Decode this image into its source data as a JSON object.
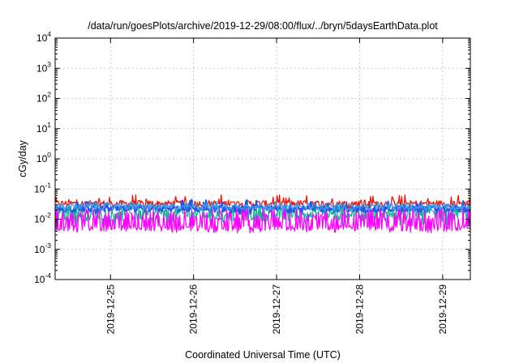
{
  "chart_data": {
    "type": "line",
    "title": "/data/run/goesPlots/archive/2019-12-29/08:00/flux/../bryn/5daysEarthData.plot",
    "xlabel": "Coordinated Universal Time (UTC)",
    "ylabel": "cGy/day",
    "yscale": "log",
    "ylim": [
      0.0001,
      10000
    ],
    "y_ticks": [
      {
        "base": "10",
        "exp": "-4",
        "value": 0.0001
      },
      {
        "base": "10",
        "exp": "-3",
        "value": 0.001
      },
      {
        "base": "10",
        "exp": "-2",
        "value": 0.01
      },
      {
        "base": "10",
        "exp": "-1",
        "value": 0.1
      },
      {
        "base": "10",
        "exp": "0",
        "value": 1
      },
      {
        "base": "10",
        "exp": "1",
        "value": 10
      },
      {
        "base": "10",
        "exp": "2",
        "value": 100
      },
      {
        "base": "10",
        "exp": "3",
        "value": 1000
      },
      {
        "base": "10",
        "exp": "4",
        "value": 10000
      }
    ],
    "xlim": [
      "2019-12-24T08:00",
      "2019-12-29T08:00"
    ],
    "x_ticks": [
      {
        "label": "2019-12-25",
        "value": "2019-12-25T00:00"
      },
      {
        "label": "2019-12-26",
        "value": "2019-12-26T00:00"
      },
      {
        "label": "2019-12-27",
        "value": "2019-12-27T00:00"
      },
      {
        "label": "2019-12-28",
        "value": "2019-12-28T00:00"
      },
      {
        "label": "2019-12-29",
        "value": "2019-12-29T00:00"
      }
    ],
    "grid": true,
    "legend": "none",
    "series": [
      {
        "color": "#e8190c",
        "typical": 0.033,
        "low": 0.022,
        "high": 0.065
      },
      {
        "color": "#14b894",
        "typical": 0.015,
        "low": 0.006,
        "high": 0.03
      },
      {
        "color": "#2255e8",
        "typical": 0.022,
        "low": 0.015,
        "high": 0.045
      },
      {
        "color": "#3f9ee8",
        "typical": 0.026,
        "low": 0.017,
        "high": 0.04
      },
      {
        "color": "#ff00ff",
        "typical": 0.005,
        "low": 0.0035,
        "high": 0.022
      }
    ]
  }
}
